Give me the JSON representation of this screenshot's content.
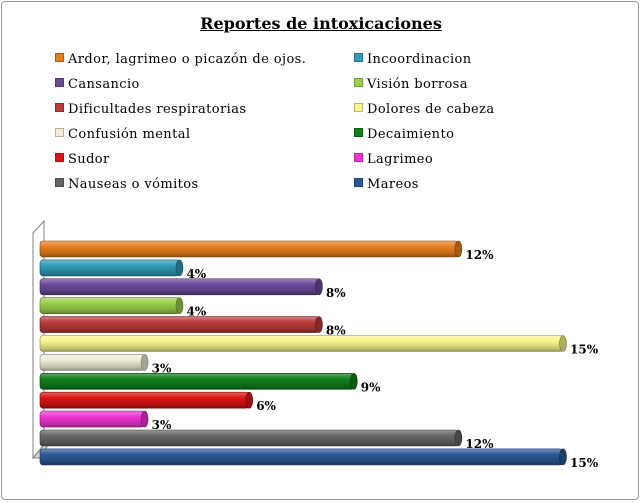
{
  "chart_data": {
    "type": "bar",
    "orientation": "horizontal",
    "style": "3d-cylinder",
    "title": "Reportes de intoxicaciones",
    "legend_position": "top",
    "grid": false,
    "xlim": [
      0,
      15
    ],
    "series": [
      {
        "name": "Ardor, lagrimeo o picazón de ojos.",
        "value": 12,
        "label": "12%",
        "color": "#e8801e"
      },
      {
        "name": "Incoordinacion",
        "value": 4,
        "label": "4%",
        "color": "#2f9db9"
      },
      {
        "name": "Cansancio",
        "value": 8,
        "label": "8%",
        "color": "#6b4a9a"
      },
      {
        "name": "Visión borrosa",
        "value": 4,
        "label": "4%",
        "color": "#9ad04a"
      },
      {
        "name": "Dificultades respiratorias",
        "value": 8,
        "label": "8%",
        "color": "#bb3b3a"
      },
      {
        "name": "Dolores de cabeza",
        "value": 15,
        "label": "15%",
        "color": "#f8f58c"
      },
      {
        "name": "Confusión mental",
        "value": 3,
        "label": "3%",
        "color": "#efedd6"
      },
      {
        "name": "Decaimiento",
        "value": 9,
        "label": "9%",
        "color": "#11801d"
      },
      {
        "name": "Sudor",
        "value": 6,
        "label": "6%",
        "color": "#dd1414"
      },
      {
        "name": "Lagrimeo",
        "value": 3,
        "label": "3%",
        "color": "#f134d4"
      },
      {
        "name": "Nauseas o vómitos",
        "value": 12,
        "label": "12%",
        "color": "#666666"
      },
      {
        "name": "Mareos",
        "value": 15,
        "label": "15%",
        "color": "#2a5896"
      }
    ]
  }
}
